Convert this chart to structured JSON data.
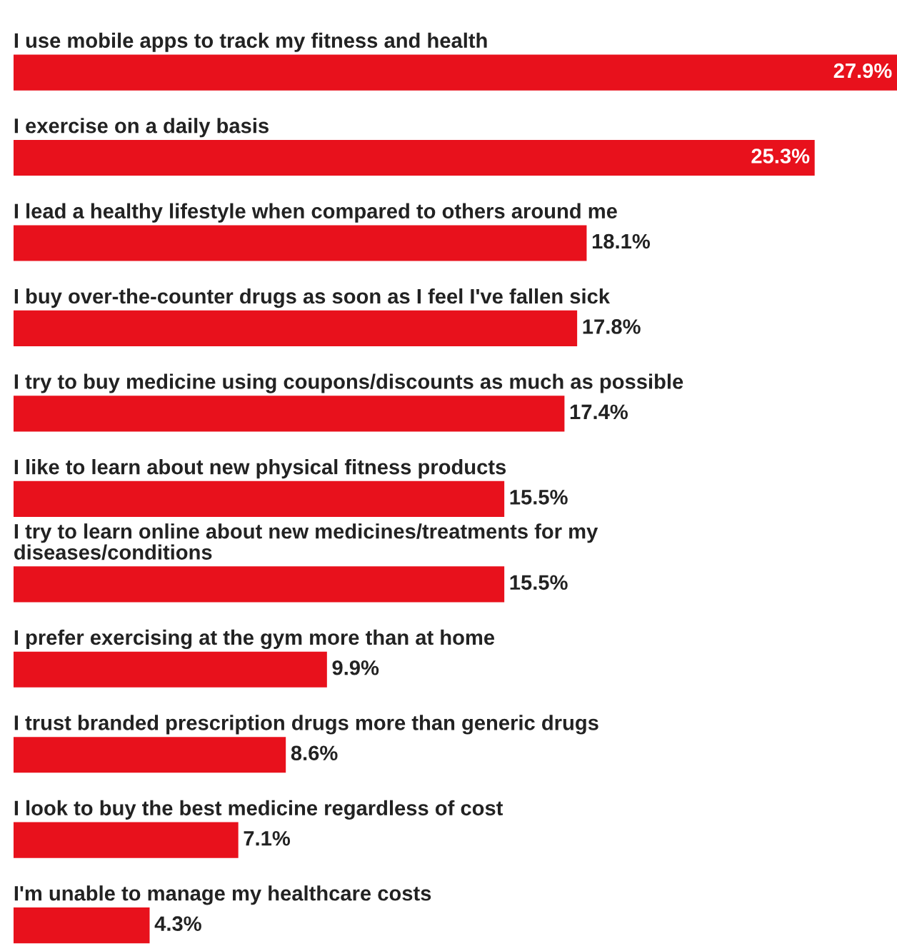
{
  "chart_data": {
    "type": "bar",
    "orientation": "horizontal",
    "categories": [
      "I use mobile apps to track my fitness and health",
      "I exercise on a daily basis",
      "I lead a healthy lifestyle when compared to others around me",
      "I buy over-the-counter drugs as soon as I feel I've fallen sick",
      "I try to buy medicine using coupons/discounts as much as possible",
      "I like to learn about new physical fitness products",
      "I try to learn online about new medicines/treatments for my\ndiseases/conditions",
      "I prefer exercising at the gym more than at home",
      "I trust branded prescription drugs more than generic drugs",
      "I look to buy the best medicine regardless of cost",
      "I'm unable to manage my healthcare costs"
    ],
    "values": [
      27.9,
      25.3,
      18.1,
      17.8,
      17.4,
      15.5,
      15.5,
      9.9,
      8.6,
      7.1,
      4.3
    ],
    "value_labels": [
      "27.9%",
      "25.3%",
      "18.1%",
      "17.8%",
      "17.4%",
      "15.5%",
      "15.5%",
      "9.9%",
      "8.6%",
      "7.1%",
      "4.3%"
    ],
    "color": "#e8111c"
  }
}
